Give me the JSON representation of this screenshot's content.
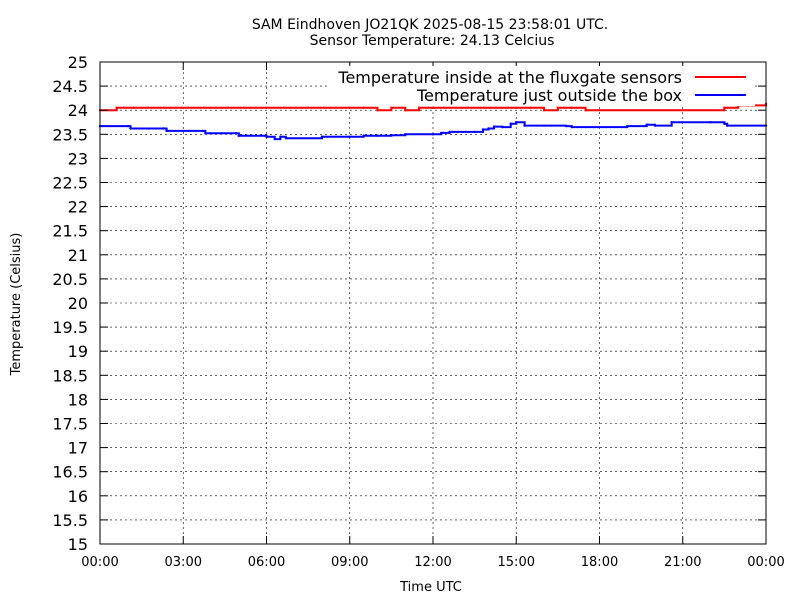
{
  "chart_data": {
    "type": "line",
    "title": "SAM Eindhoven JO21QK 2025-08-15 23:58:01 UTC.",
    "subtitle": "Sensor Temperature: 24.13 Celcius",
    "xlabel": "Time UTC",
    "ylabel": "Temperature (Celsius)",
    "xlim": [
      0,
      24
    ],
    "ylim": [
      15,
      25
    ],
    "x_ticks": [
      0,
      3,
      6,
      9,
      12,
      15,
      18,
      21,
      24
    ],
    "x_tick_labels": [
      "00:00",
      "03:00",
      "06:00",
      "09:00",
      "12:00",
      "15:00",
      "18:00",
      "21:00",
      "00:00"
    ],
    "y_ticks": [
      15,
      15.5,
      16,
      16.5,
      17,
      17.5,
      18,
      18.5,
      19,
      19.5,
      20,
      20.5,
      21,
      21.5,
      22,
      22.5,
      23,
      23.5,
      24,
      24.5,
      25
    ],
    "y_tick_labels": [
      "15",
      "15.5",
      "16",
      "16.5",
      "17",
      "17.5",
      "18",
      "18.5",
      "19",
      "19.5",
      "20",
      "20.5",
      "21",
      "21.5",
      "22",
      "22.5",
      "23",
      "23.5",
      "24",
      "24.5",
      "25"
    ],
    "grid": true,
    "legend_position": "top-right",
    "series": [
      {
        "name": "Temperature inside at the fluxgate sensors",
        "color": "#ff0000",
        "x": [
          0,
          0.6,
          1.2,
          9.5,
          10.0,
          10.5,
          11.0,
          11.5,
          12.0,
          15.5,
          16.0,
          16.5,
          17.0,
          17.5,
          22.5,
          23.0,
          23.5,
          24.0
        ],
        "y": [
          24.0,
          24.05,
          24.05,
          24.05,
          24.0,
          24.05,
          24.0,
          24.05,
          24.05,
          24.05,
          24.0,
          24.05,
          24.05,
          24.0,
          24.05,
          24.1,
          24.1,
          24.13
        ]
      },
      {
        "name": "Temperature just outside the box",
        "color": "#0000ff",
        "x": [
          0,
          1.0,
          1.1,
          2.3,
          2.4,
          3.7,
          3.8,
          4.9,
          5.0,
          6.0,
          6.3,
          6.5,
          6.7,
          8.0,
          9.0,
          9.5,
          10.0,
          10.5,
          11.0,
          12.0,
          12.3,
          12.6,
          13.5,
          13.8,
          14.0,
          14.2,
          14.5,
          14.8,
          15.0,
          15.3,
          16.0,
          16.8,
          17.0,
          19.0,
          19.7,
          20.0,
          20.6,
          22.0,
          22.5,
          22.6,
          24.0
        ],
        "y": [
          23.67,
          23.67,
          23.62,
          23.62,
          23.57,
          23.57,
          23.52,
          23.52,
          23.47,
          23.45,
          23.4,
          23.45,
          23.42,
          23.45,
          23.45,
          23.47,
          23.47,
          23.48,
          23.5,
          23.5,
          23.53,
          23.55,
          23.55,
          23.6,
          23.62,
          23.66,
          23.65,
          23.72,
          23.75,
          23.68,
          23.68,
          23.67,
          23.65,
          23.67,
          23.7,
          23.68,
          23.75,
          23.75,
          23.72,
          23.68,
          23.68
        ]
      }
    ]
  }
}
